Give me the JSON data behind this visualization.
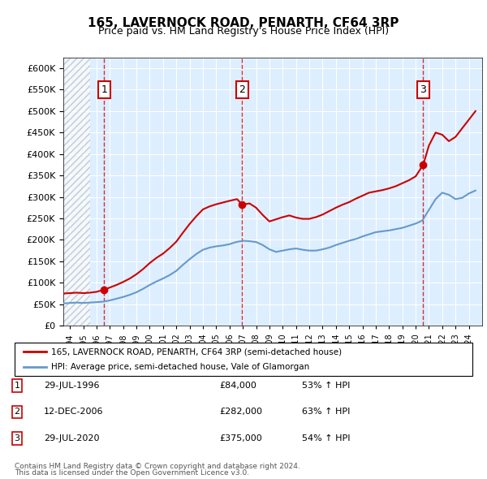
{
  "title": "165, LAVERNOCK ROAD, PENARTH, CF64 3RP",
  "subtitle": "Price paid vs. HM Land Registry's House Price Index (HPI)",
  "legend_label_red": "165, LAVERNOCK ROAD, PENARTH, CF64 3RP (semi-detached house)",
  "legend_label_blue": "HPI: Average price, semi-detached house, Vale of Glamorgan",
  "footnote1": "Contains HM Land Registry data © Crown copyright and database right 2024.",
  "footnote2": "This data is licensed under the Open Government Licence v3.0.",
  "table": [
    {
      "num": "1",
      "date": "29-JUL-1996",
      "price": "£84,000",
      "hpi": "53% ↑ HPI"
    },
    {
      "num": "2",
      "date": "12-DEC-2006",
      "price": "£282,000",
      "hpi": "63% ↑ HPI"
    },
    {
      "num": "3",
      "date": "29-JUL-2020",
      "price": "£375,000",
      "hpi": "54% ↑ HPI"
    }
  ],
  "sale_points": [
    {
      "year": 1996.57,
      "price": 84000,
      "label": "1"
    },
    {
      "year": 2006.95,
      "price": 282000,
      "label": "2"
    },
    {
      "year": 2020.57,
      "price": 375000,
      "label": "3"
    }
  ],
  "red_color": "#cc0000",
  "blue_color": "#6699cc",
  "dashed_color": "#cc0000",
  "background_plot": "#ddeeff",
  "background_hatch": "#cccccc",
  "ylim": [
    0,
    625000
  ],
  "xlim_start": 1993.5,
  "xlim_end": 2025.0,
  "hpi_data": {
    "years": [
      1993.5,
      1994,
      1994.5,
      1995,
      1995.5,
      1996,
      1996.5,
      1997,
      1997.5,
      1998,
      1998.5,
      1999,
      1999.5,
      2000,
      2000.5,
      2001,
      2001.5,
      2002,
      2002.5,
      2003,
      2003.5,
      2004,
      2004.5,
      2005,
      2005.5,
      2006,
      2006.5,
      2007,
      2007.5,
      2008,
      2008.5,
      2009,
      2009.5,
      2010,
      2010.5,
      2011,
      2011.5,
      2012,
      2012.5,
      2013,
      2013.5,
      2014,
      2014.5,
      2015,
      2015.5,
      2016,
      2016.5,
      2017,
      2017.5,
      2018,
      2018.5,
      2019,
      2019.5,
      2020,
      2020.5,
      2021,
      2021.5,
      2022,
      2022.5,
      2023,
      2023.5,
      2024,
      2024.5
    ],
    "values": [
      52000,
      53000,
      54000,
      53000,
      54000,
      55000,
      56000,
      59000,
      63000,
      67000,
      72000,
      78000,
      86000,
      95000,
      103000,
      110000,
      118000,
      128000,
      142000,
      155000,
      167000,
      177000,
      182000,
      185000,
      187000,
      190000,
      195000,
      198000,
      197000,
      195000,
      188000,
      178000,
      172000,
      175000,
      178000,
      180000,
      177000,
      175000,
      175000,
      178000,
      182000,
      188000,
      193000,
      198000,
      202000,
      208000,
      213000,
      218000,
      220000,
      222000,
      225000,
      228000,
      233000,
      238000,
      245000,
      270000,
      295000,
      310000,
      305000,
      295000,
      298000,
      308000,
      315000
    ]
  },
  "red_data": {
    "years": [
      1993.5,
      1994,
      1994.5,
      1995,
      1995.5,
      1996,
      1996.57,
      1997,
      1997.5,
      1998,
      1998.5,
      1999,
      1999.5,
      2000,
      2000.5,
      2001,
      2001.5,
      2002,
      2002.5,
      2003,
      2003.5,
      2004,
      2004.5,
      2005,
      2005.5,
      2006,
      2006.57,
      2006.95,
      2007,
      2007.5,
      2008,
      2008.5,
      2009,
      2009.5,
      2010,
      2010.5,
      2011,
      2011.5,
      2012,
      2012.5,
      2013,
      2013.5,
      2014,
      2014.5,
      2015,
      2015.5,
      2016,
      2016.5,
      2017,
      2017.5,
      2018,
      2018.5,
      2019,
      2019.5,
      2020,
      2020.57,
      2021,
      2021.5,
      2022,
      2022.5,
      2023,
      2023.5,
      2024,
      2024.5
    ],
    "values": [
      75000,
      76000,
      77000,
      76000,
      77000,
      79000,
      84000,
      89000,
      95000,
      102000,
      110000,
      120000,
      132000,
      146000,
      158000,
      168000,
      181000,
      196000,
      217000,
      237000,
      255000,
      271000,
      278000,
      283000,
      287000,
      291000,
      295000,
      282000,
      282000,
      285000,
      275000,
      258000,
      243000,
      248000,
      253000,
      257000,
      252000,
      249000,
      249000,
      253000,
      259000,
      267000,
      275000,
      282000,
      288000,
      296000,
      303000,
      310000,
      313000,
      316000,
      320000,
      325000,
      332000,
      339000,
      348000,
      375000,
      420000,
      450000,
      445000,
      430000,
      440000,
      460000,
      480000,
      500000
    ]
  }
}
